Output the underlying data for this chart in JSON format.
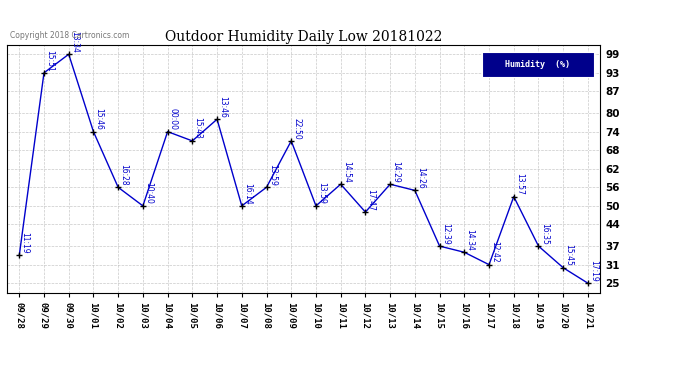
{
  "title": "Outdoor Humidity Daily Low 20181022",
  "copyright": "Copyright 2018 Cartronics.com",
  "legend_label": "Humidity  (%)",
  "background_color": "#ffffff",
  "plot_bg_color": "#ffffff",
  "line_color": "#0000cc",
  "grid_color": "#bbbbbb",
  "yticks": [
    25,
    31,
    37,
    44,
    50,
    56,
    62,
    68,
    74,
    80,
    87,
    93,
    99
  ],
  "data_points": [
    {
      "date": "09/28",
      "value": 34,
      "time": "11:19"
    },
    {
      "date": "09/29",
      "value": 93,
      "time": "15:51"
    },
    {
      "date": "09/30",
      "value": 99,
      "time": "13:34"
    },
    {
      "date": "10/01",
      "value": 74,
      "time": "15:46"
    },
    {
      "date": "10/02",
      "value": 56,
      "time": "16:28"
    },
    {
      "date": "10/03",
      "value": 50,
      "time": "10:40"
    },
    {
      "date": "10/04",
      "value": 74,
      "time": "00:00"
    },
    {
      "date": "10/05",
      "value": 71,
      "time": "15:43"
    },
    {
      "date": "10/06",
      "value": 78,
      "time": "13:46"
    },
    {
      "date": "10/07",
      "value": 50,
      "time": "16:14"
    },
    {
      "date": "10/08",
      "value": 56,
      "time": "13:59"
    },
    {
      "date": "10/09",
      "value": 71,
      "time": "22:50"
    },
    {
      "date": "10/10",
      "value": 50,
      "time": "13:59"
    },
    {
      "date": "10/11",
      "value": 57,
      "time": "14:54"
    },
    {
      "date": "10/12",
      "value": 48,
      "time": "17:47"
    },
    {
      "date": "10/13",
      "value": 57,
      "time": "14:29"
    },
    {
      "date": "10/14",
      "value": 55,
      "time": "14:26"
    },
    {
      "date": "10/15",
      "value": 37,
      "time": "12:39"
    },
    {
      "date": "10/16",
      "value": 35,
      "time": "14:34"
    },
    {
      "date": "10/17",
      "value": 31,
      "time": "12:42"
    },
    {
      "date": "10/18",
      "value": 53,
      "time": "13:57"
    },
    {
      "date": "10/19",
      "value": 37,
      "time": "16:35"
    },
    {
      "date": "10/20",
      "value": 30,
      "time": "15:45"
    },
    {
      "date": "10/21",
      "value": 25,
      "time": "17:19"
    }
  ]
}
